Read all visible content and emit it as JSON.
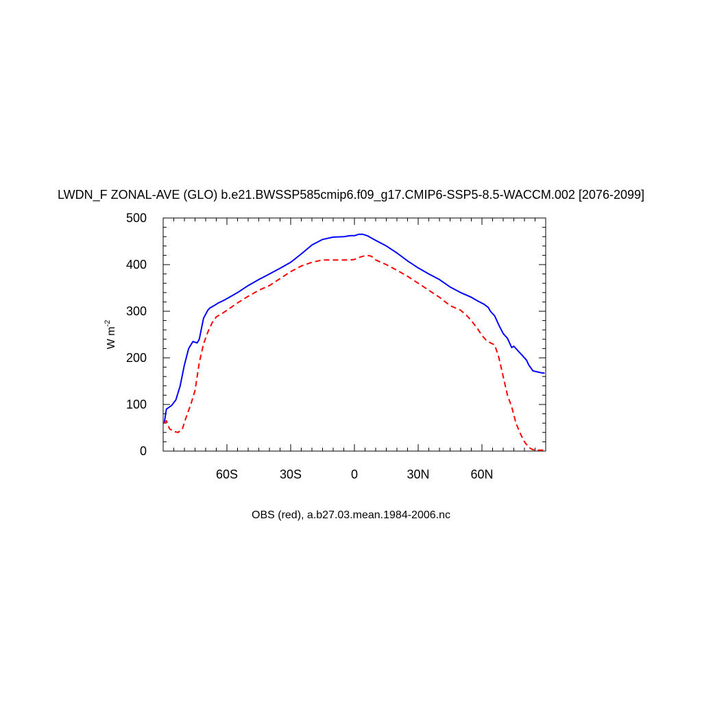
{
  "chart_data": {
    "type": "line",
    "title": "LWDN_F ZONAL-AVE (GLO) b.e21.BWSSP585cmip6.f09_g17.CMIP6-SSP5-8.5-WACCM.002 [2076-2099]",
    "ylabel": "W m",
    "ylabel_superscript": "-2",
    "footer": "OBS (red), a.b27.03.mean.1984-2006.nc",
    "xlim": [
      -90,
      90
    ],
    "ylim": [
      0,
      500
    ],
    "x_ticks": [
      {
        "value": -60,
        "label": "60S"
      },
      {
        "value": -30,
        "label": "30S"
      },
      {
        "value": 0,
        "label": "0"
      },
      {
        "value": 30,
        "label": "30N"
      },
      {
        "value": 60,
        "label": "60N"
      }
    ],
    "y_ticks": [
      {
        "value": 0,
        "label": "0"
      },
      {
        "value": 100,
        "label": "100"
      },
      {
        "value": 200,
        "label": "200"
      },
      {
        "value": 300,
        "label": "300"
      },
      {
        "value": 400,
        "label": "400"
      },
      {
        "value": 500,
        "label": "500"
      }
    ],
    "grid": false,
    "legend": "none",
    "series": [
      {
        "color": "#0000ff",
        "dash": "solid",
        "x": [
          -89.5,
          -88.5,
          -86,
          -84,
          -82,
          -80,
          -78,
          -76,
          -74,
          -73,
          -71,
          -69,
          -68,
          -66,
          -65,
          -64,
          -62,
          -60,
          -55,
          -50,
          -45,
          -40,
          -35,
          -30,
          -25,
          -20,
          -15,
          -10,
          -5,
          -2,
          0,
          2,
          4,
          6,
          10,
          15,
          20,
          25,
          30,
          35,
          40,
          45,
          50,
          55,
          58,
          61,
          63,
          64,
          66,
          68,
          70,
          72,
          74,
          75,
          77,
          79,
          81,
          82,
          84,
          86,
          88,
          89.5
        ],
        "y": [
          60,
          90,
          98,
          110,
          140,
          185,
          220,
          235,
          232,
          240,
          285,
          302,
          307,
          312,
          315,
          318,
          322,
          327,
          340,
          355,
          368,
          380,
          392,
          405,
          423,
          442,
          454,
          459,
          460,
          462,
          462,
          465,
          465,
          462,
          452,
          440,
          425,
          408,
          393,
          380,
          368,
          352,
          340,
          330,
          322,
          315,
          308,
          300,
          290,
          270,
          252,
          242,
          222,
          225,
          215,
          205,
          195,
          185,
          172,
          170,
          168,
          167
        ]
      },
      {
        "color": "#ff0000",
        "dash": "dashed",
        "x": [
          -89.5,
          -88.5,
          -87,
          -85,
          -83,
          -81,
          -79,
          -77,
          -75,
          -73,
          -71,
          -69,
          -67,
          -65,
          -62,
          -60,
          -55,
          -50,
          -45,
          -40,
          -35,
          -30,
          -25,
          -20,
          -15,
          -10,
          -5,
          -2,
          0,
          2,
          4,
          6,
          8,
          10,
          15,
          20,
          25,
          30,
          35,
          40,
          45,
          50,
          53,
          55,
          58,
          60,
          62,
          64,
          66,
          68,
          70,
          72,
          74,
          76,
          78,
          80,
          82,
          84,
          86,
          88,
          89.5
        ],
        "y": [
          60,
          65,
          48,
          42,
          40,
          47,
          75,
          100,
          130,
          190,
          230,
          255,
          275,
          288,
          296,
          302,
          318,
          332,
          345,
          355,
          370,
          385,
          397,
          405,
          410,
          410,
          410,
          410,
          411,
          415,
          418,
          420,
          418,
          410,
          400,
          388,
          375,
          360,
          345,
          330,
          312,
          302,
          290,
          280,
          262,
          248,
          238,
          232,
          228,
          200,
          160,
          120,
          95,
          60,
          38,
          20,
          8,
          3,
          2,
          2,
          2
        ]
      }
    ]
  }
}
